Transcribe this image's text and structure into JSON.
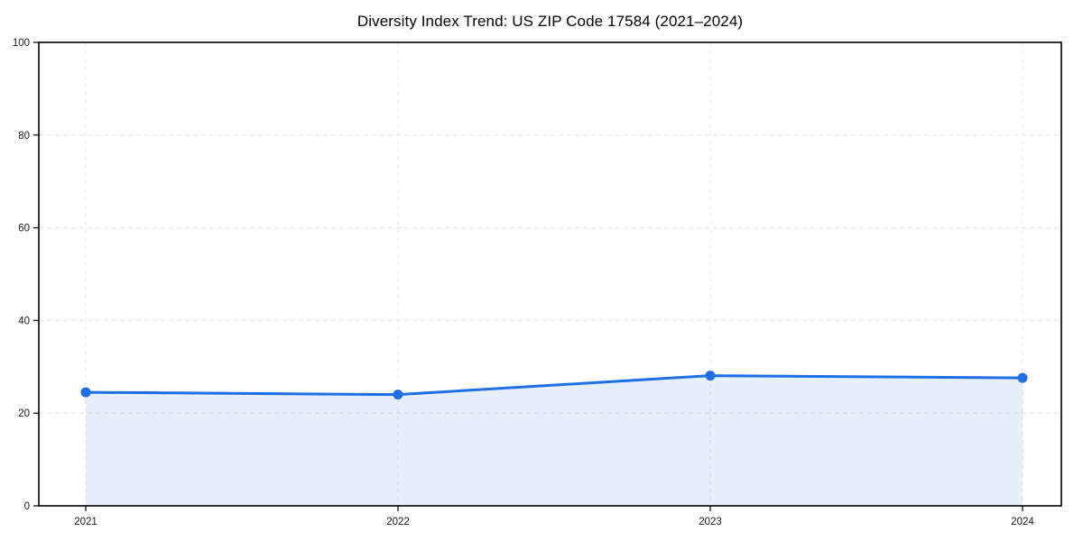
{
  "chart_data": {
    "type": "line",
    "title": "Diversity Index Trend: US ZIP Code 17584 (2021–2024)",
    "categories": [
      "2021",
      "2022",
      "2023",
      "2024"
    ],
    "values": [
      24.5,
      24.0,
      28.1,
      27.6
    ],
    "xlabel": "",
    "ylabel": "",
    "ylim": [
      0,
      100
    ],
    "yticks": [
      0,
      20,
      40,
      60,
      80,
      100
    ],
    "grid": true,
    "grid_style": "dashed",
    "legend_position": "none",
    "marker": "circle",
    "colors": {
      "line": "#1e6ee6",
      "marker": "#1e6ee6",
      "area_fill": "#1e6ee6",
      "area_fill_opacity": 0.11,
      "h_gridline": "#e0e0e0",
      "v_gridline": "#e9e9e9",
      "axis_border": "#000000",
      "tick_text": "#1a1a1a",
      "background": "#ffffff"
    }
  }
}
